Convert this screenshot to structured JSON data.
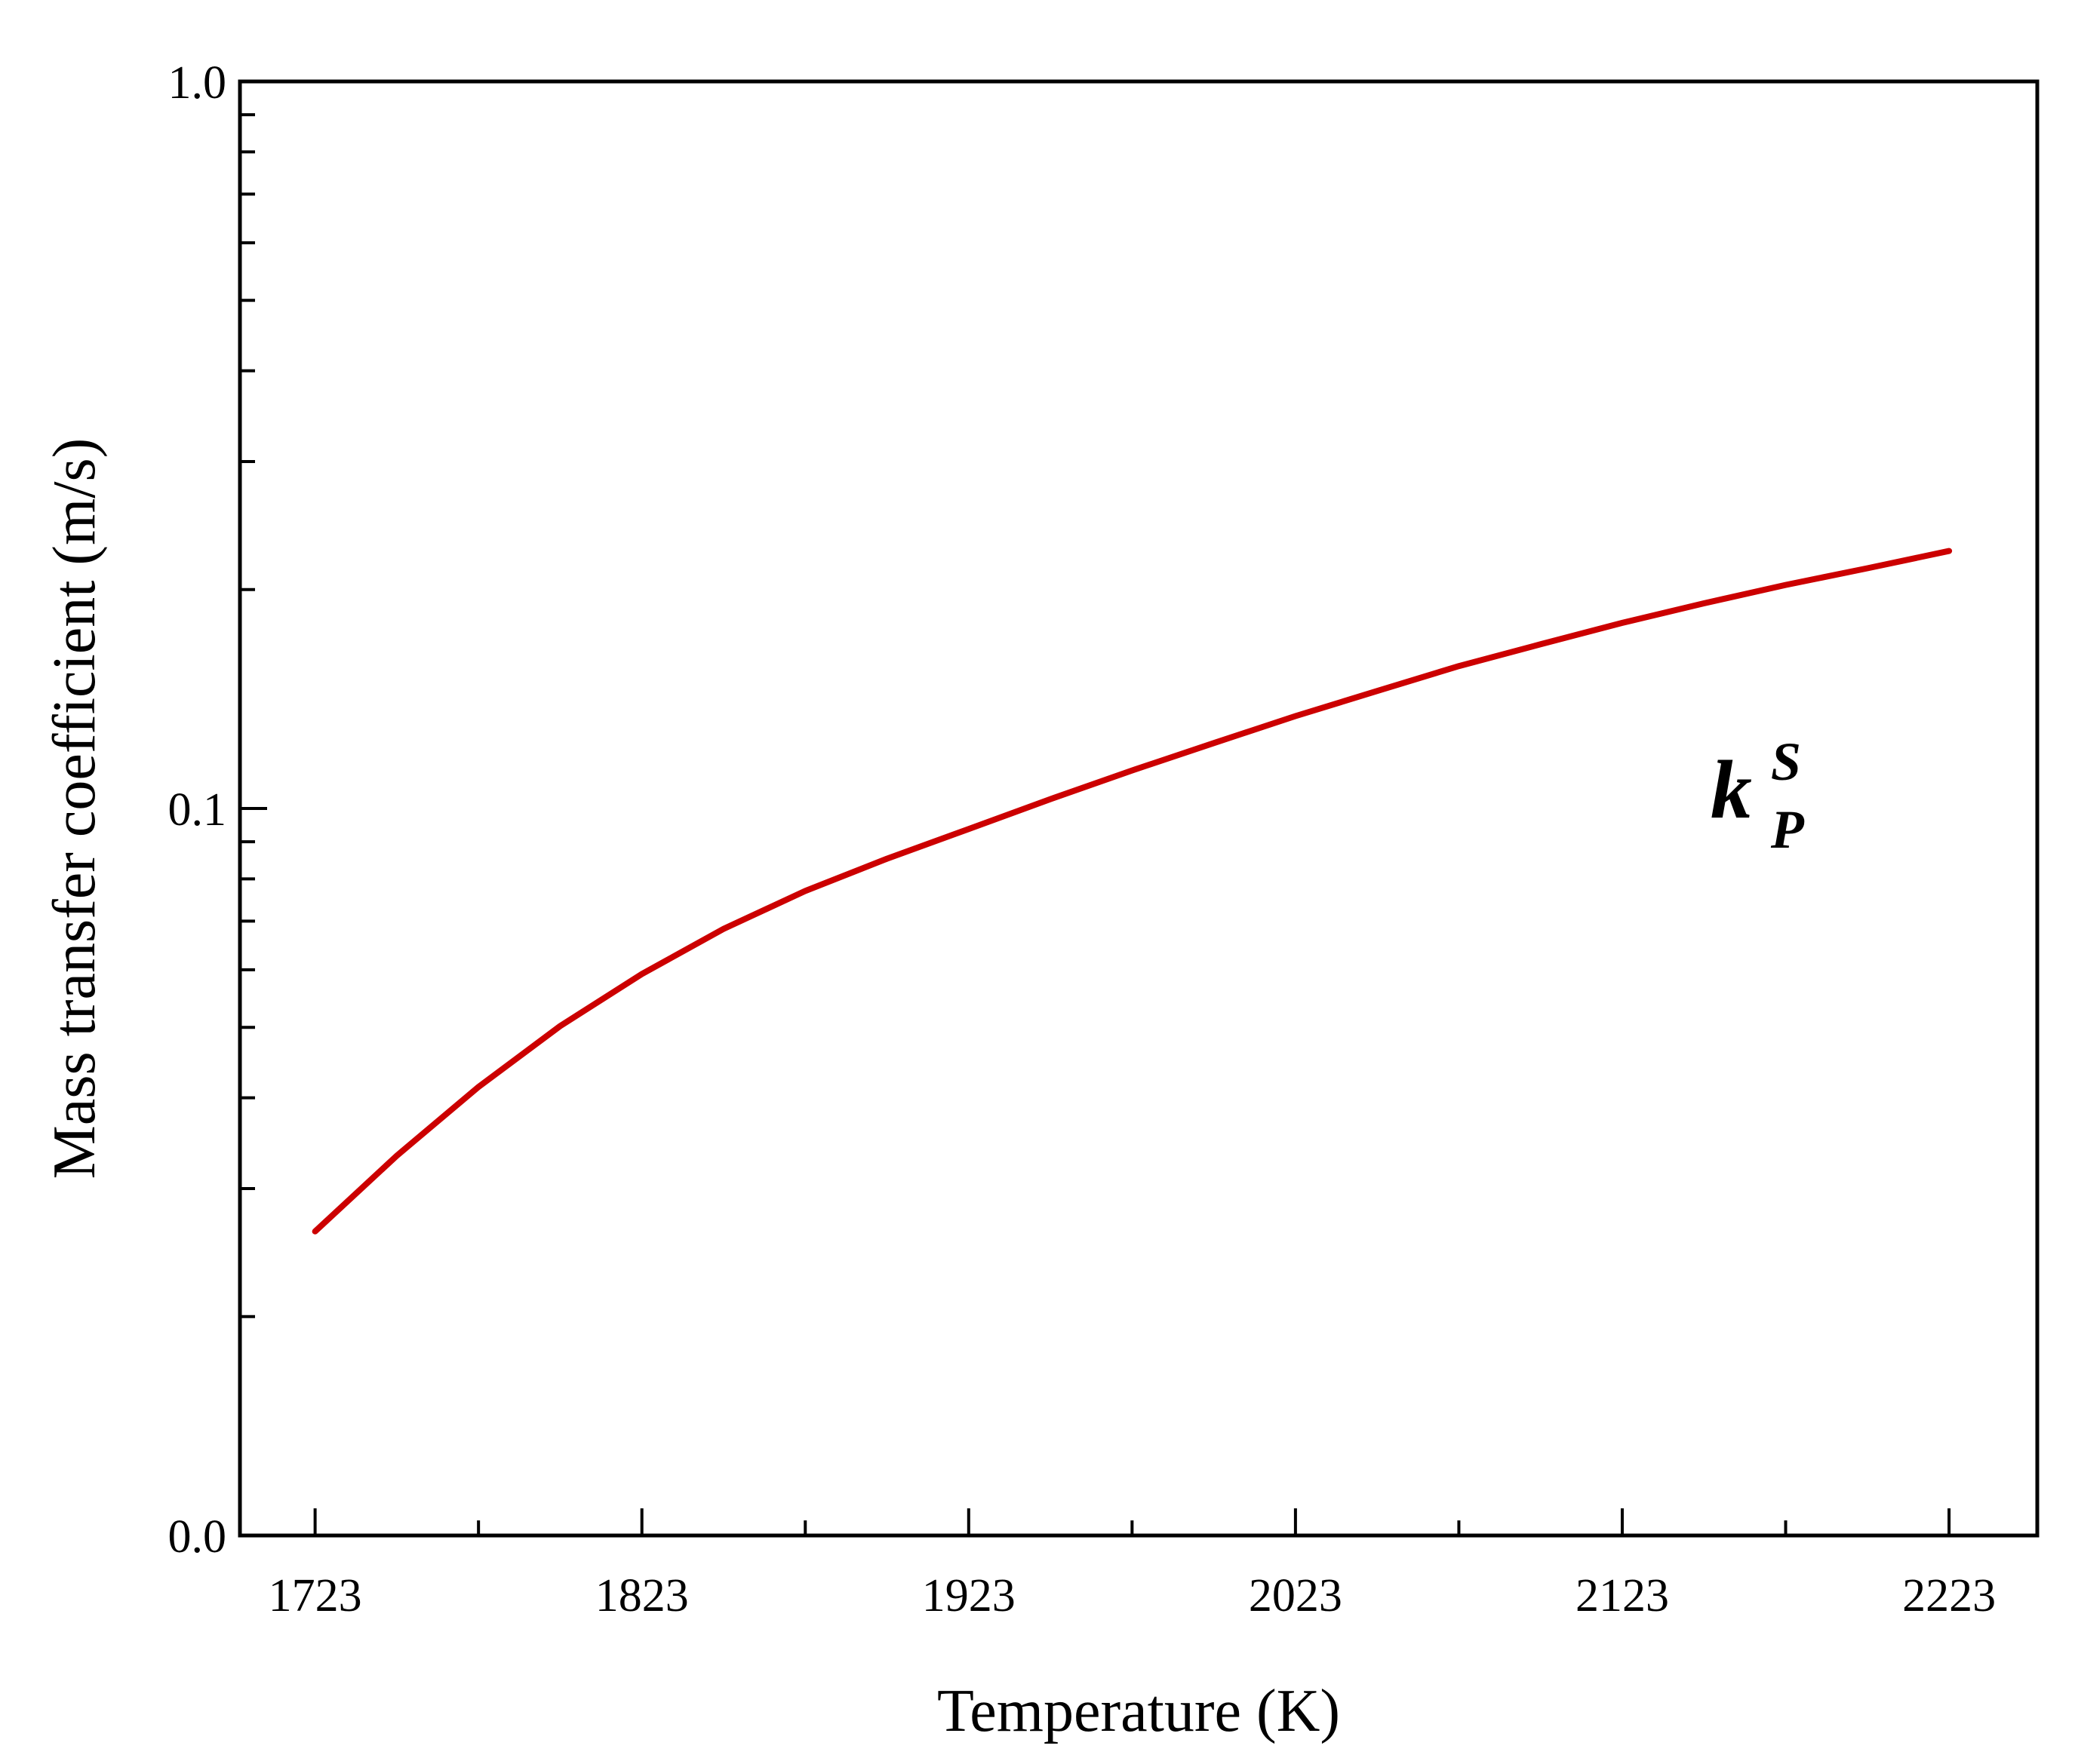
{
  "chart_data": {
    "type": "line",
    "xlabel": "Temperature (K)",
    "ylabel": "Mass transfer coefficient (m/s)",
    "xlim": [
      1700,
      2250
    ],
    "ylim": [
      0.01,
      1.0
    ],
    "yscale": "log",
    "xticks": [
      1723,
      1823,
      1923,
      2023,
      2123,
      2223
    ],
    "yticks": [
      0.01,
      0.1,
      1.0
    ],
    "ytick_labels": [
      "0.0",
      "0.1",
      "1.0"
    ],
    "grid": false,
    "line_color": "#cc0000",
    "annotation": {
      "main": "k",
      "sup": "S",
      "sub": "P",
      "x": 2150,
      "y": 0.1
    },
    "series": [
      {
        "x": [
          1723,
          1748,
          1773,
          1798,
          1823,
          1848,
          1873,
          1898,
          1923,
          1948,
          1973,
          1998,
          2023,
          2048,
          2073,
          2098,
          2123,
          2148,
          2173,
          2198,
          2223
        ],
        "values": [
          0.0262,
          0.0333,
          0.0414,
          0.0502,
          0.0592,
          0.0683,
          0.077,
          0.0853,
          0.0937,
          0.103,
          0.1128,
          0.123,
          0.134,
          0.1451,
          0.157,
          0.1682,
          0.18,
          0.1915,
          0.203,
          0.214,
          0.226
        ]
      }
    ]
  }
}
